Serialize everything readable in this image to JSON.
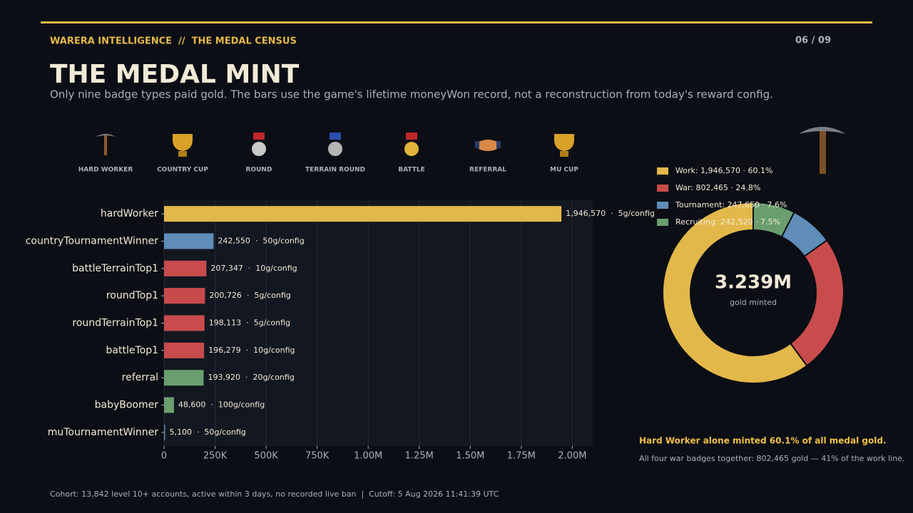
{
  "header": {
    "kicker": "WARERA INTELLIGENCE  //  THE MEDAL CENSUS",
    "page": "06 / 09"
  },
  "title": "THE MEDAL MINT",
  "subtitle": "Only nine badge types paid gold. The bars use the game's lifetime moneyWon record, not a reconstruction from today's reward config.",
  "icons": [
    {
      "label": "HARD WORKER"
    },
    {
      "label": "COUNTRY CUP"
    },
    {
      "label": "ROUND"
    },
    {
      "label": "TERRAIN ROUND"
    },
    {
      "label": "BATTLE"
    },
    {
      "label": "REFERRAL"
    },
    {
      "label": "MU CUP"
    }
  ],
  "chart_data": [
    {
      "type": "bar",
      "orientation": "horizontal",
      "categories": [
        "hardWorker",
        "countryTournamentWinner",
        "battleTerrainTop1",
        "roundTop1",
        "roundTerrainTop1",
        "battleTop1",
        "referral",
        "babyBoomer",
        "muTournamentWinner"
      ],
      "values": [
        1946570,
        242550,
        207347,
        200726,
        198113,
        196279,
        193920,
        48600,
        5100
      ],
      "value_labels": [
        "1,946,570  ·  5g/config",
        "242,550  ·  50g/config",
        "207,347  ·  10g/config",
        "200,726  ·  5g/config",
        "198,113  ·  5g/config",
        "196,279  ·  10g/config",
        "193,920  ·  20g/config",
        "48,600  ·  100g/config",
        "5,100  ·  50g/config"
      ],
      "colors": [
        "#e3b84a",
        "#5f8db8",
        "#c94c4c",
        "#c94c4c",
        "#c94c4c",
        "#c94c4c",
        "#6a9e6e",
        "#6a9e6e",
        "#5f8db8"
      ],
      "xlim": [
        0,
        2100000
      ],
      "xticks": [
        0,
        {
          "value": 250000,
          "label": "250K"
        },
        {
          "value": 500000,
          "label": "500K"
        },
        {
          "value": 750000,
          "label": "750K"
        },
        {
          "value": 1000000,
          "label": "1.00M"
        },
        {
          "value": 1250000,
          "label": "1.25M"
        },
        {
          "value": 1500000,
          "label": "1.50M"
        },
        {
          "value": 1750000,
          "label": "1.75M"
        },
        {
          "value": 2000000,
          "label": "2.00M"
        }
      ],
      "grid": true
    },
    {
      "type": "donut",
      "values": [
        1946570,
        802465,
        247650,
        242520
      ],
      "value_labels": [
        "Work: 1,946,570 · 60.1%",
        "War: 802,465 · 24.8%",
        "Tournament: 247,650 · 7.6%",
        "Recruiting: 242,520 · 7.5%"
      ],
      "colors": [
        "#e3b84a",
        "#c94c4c",
        "#5f8db8",
        "#6a9e6e"
      ],
      "center_value": "3.239M",
      "center_label": "gold minted"
    }
  ],
  "callout": {
    "title": "Hard Worker alone minted 60.1% of all medal gold.",
    "text": "All four war badges together: 802,465 gold — 41% of the work line."
  },
  "footer": "Cohort: 13,842 level 10+ accounts, active within 3 days, no recorded live ban  |  Cutoff: 5 Aug 2026 11:41:39 UTC"
}
